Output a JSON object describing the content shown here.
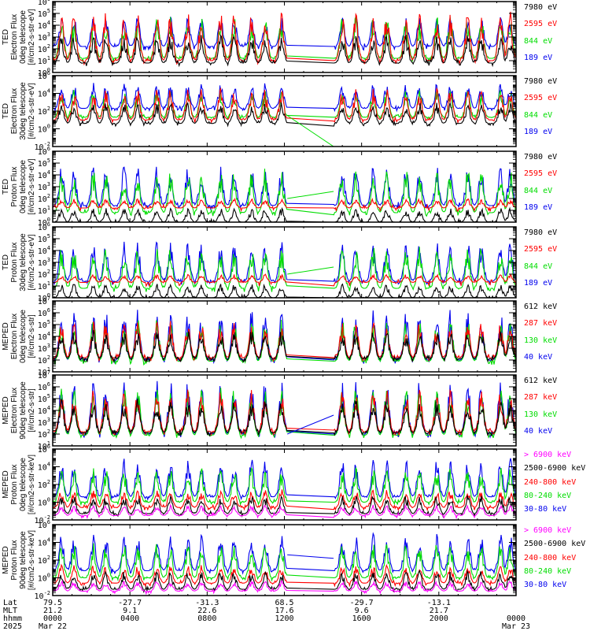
{
  "chart_data": {
    "type": "line",
    "title": "",
    "x_axis": {
      "range_hours": [
        0,
        24
      ],
      "ticks_hours": [
        0,
        4,
        8,
        12,
        16,
        20,
        24
      ],
      "rows": [
        {
          "label": "Lat",
          "values": [
            "79.5",
            "-27.7",
            "-31.3",
            "68.5",
            "-29.7",
            "-13.1",
            ""
          ]
        },
        {
          "label": "MLT",
          "values": [
            "21.2",
            "9.1",
            "22.6",
            "17.6",
            "9.6",
            "21.7",
            ""
          ]
        },
        {
          "label": "hhmm",
          "values": [
            "0000",
            "0400",
            "0800",
            "1200",
            "1600",
            "2000",
            "0000"
          ]
        },
        {
          "label": "2025",
          "values": [
            "Mar 22",
            "",
            "",
            "",
            "",
            "",
            "Mar 23"
          ]
        }
      ],
      "data_gap_hours": [
        12.15,
        14.55
      ]
    },
    "panels": [
      {
        "ylabel": [
          "TED",
          "Electron Flux",
          "0deg telescope",
          "[#/cm2-s-str-eV]"
        ],
        "yscale": "log",
        "ylim_exp": [
          0,
          6
        ],
        "tick_exps": [
          0,
          1,
          2,
          3,
          4,
          5,
          6
        ],
        "series": [
          {
            "name": "7980 eV",
            "color": "#000000",
            "base_exp": 0.8,
            "peak_exp": 3.2
          },
          {
            "name": "2595 eV",
            "color": "#ff0000",
            "base_exp": 1.0,
            "peak_exp": 5.2
          },
          {
            "name": "844 eV",
            "color": "#00dd00",
            "base_exp": 1.2,
            "peak_exp": 4.8
          },
          {
            "name": "189 eV",
            "color": "#0000ee",
            "base_exp": 2.2,
            "peak_exp": 4.8
          }
        ],
        "gap_line": null
      },
      {
        "ylabel": [
          "TED",
          "Electron Flux",
          "30deg telescope",
          "[#/cm2-s-str-eV]"
        ],
        "yscale": "log",
        "ylim_exp": [
          -2,
          6
        ],
        "tick_exps": [
          -2,
          0,
          2,
          4,
          6
        ],
        "series": [
          {
            "name": "7980 eV",
            "color": "#000000",
            "base_exp": 0.6,
            "peak_exp": 3.0
          },
          {
            "name": "2595 eV",
            "color": "#ff0000",
            "base_exp": 1.0,
            "peak_exp": 4.6
          },
          {
            "name": "844 eV",
            "color": "#00dd00",
            "base_exp": 1.3,
            "peak_exp": 4.4
          },
          {
            "name": "189 eV",
            "color": "#0000ee",
            "base_exp": 2.3,
            "peak_exp": 5.2
          }
        ],
        "gap_line": {
          "color": "#00dd00",
          "from_exp": 1.5,
          "to_exp": -2
        }
      },
      {
        "ylabel": [
          "TED",
          "Proton Flux",
          "0deg telescope",
          "[#/cm2-s-str-eV]"
        ],
        "yscale": "log",
        "ylim_exp": [
          0,
          6
        ],
        "tick_exps": [
          0,
          1,
          2,
          3,
          4,
          5,
          6
        ],
        "series": [
          {
            "name": "7980 eV",
            "color": "#000000",
            "base_exp": 0.0,
            "peak_exp": 1.2
          },
          {
            "name": "2595 eV",
            "color": "#ff0000",
            "base_exp": 1.2,
            "peak_exp": 2.0
          },
          {
            "name": "844 eV",
            "color": "#00dd00",
            "base_exp": 0.8,
            "peak_exp": 4.6
          },
          {
            "name": "189 eV",
            "color": "#0000ee",
            "base_exp": 1.4,
            "peak_exp": 4.8
          }
        ],
        "gap_line": {
          "color": "#00dd00",
          "from_exp": 2.0,
          "to_exp": 2.6
        }
      },
      {
        "ylabel": [
          "TED",
          "Proton Flux",
          "30deg telescope",
          "[#/cm2-s-str-eV]"
        ],
        "yscale": "log",
        "ylim_exp": [
          0,
          6
        ],
        "tick_exps": [
          0,
          1,
          2,
          3,
          4,
          5,
          6
        ],
        "series": [
          {
            "name": "7980 eV",
            "color": "#000000",
            "base_exp": 0.0,
            "peak_exp": 1.2
          },
          {
            "name": "2595 eV",
            "color": "#ff0000",
            "base_exp": 1.3,
            "peak_exp": 2.0
          },
          {
            "name": "844 eV",
            "color": "#00dd00",
            "base_exp": 0.8,
            "peak_exp": 4.4
          },
          {
            "name": "189 eV",
            "color": "#0000ee",
            "base_exp": 1.4,
            "peak_exp": 4.8
          }
        ],
        "gap_line": {
          "color": "#00dd00",
          "from_exp": 2.0,
          "to_exp": 2.6
        }
      },
      {
        "ylabel": [
          "MEPED",
          "Electron Flux",
          "0deg telescope",
          "[#/cm2-s-str]"
        ],
        "yscale": "log",
        "ylim_exp": [
          1,
          7
        ],
        "tick_exps": [
          1,
          2,
          3,
          4,
          5,
          6,
          7
        ],
        "series": [
          {
            "name": "612 keV",
            "color": "#000000",
            "base_exp": 2.1,
            "peak_exp": 4.6
          },
          {
            "name": "287 keV",
            "color": "#ff0000",
            "base_exp": 2.2,
            "peak_exp": 5.3
          },
          {
            "name": "130 keV",
            "color": "#00dd00",
            "base_exp": 1.9,
            "peak_exp": 5.5
          },
          {
            "name": "40 keV",
            "color": "#0000ee",
            "base_exp": 2.0,
            "peak_exp": 6.3
          }
        ],
        "gap_line": null
      },
      {
        "ylabel": [
          "MEPED",
          "Electron Flux",
          "90deg telescope",
          "[#/cm2-s-str]"
        ],
        "yscale": "log",
        "ylim_exp": [
          1,
          7
        ],
        "tick_exps": [
          1,
          2,
          3,
          4,
          5,
          6,
          7
        ],
        "series": [
          {
            "name": "612 keV",
            "color": "#000000",
            "base_exp": 2.1,
            "peak_exp": 5.0
          },
          {
            "name": "287 keV",
            "color": "#ff0000",
            "base_exp": 2.2,
            "peak_exp": 5.8
          },
          {
            "name": "130 keV",
            "color": "#00dd00",
            "base_exp": 1.9,
            "peak_exp": 6.0
          },
          {
            "name": "40 keV",
            "color": "#0000ee",
            "base_exp": 2.0,
            "peak_exp": 6.6
          }
        ],
        "gap_line": {
          "color": "#0000ee",
          "from_exp": 2.0,
          "to_exp": 3.6
        }
      },
      {
        "ylabel": [
          "MEPED",
          "Proton Flux",
          "0deg telescope",
          "[#/cm2-s-str-keV]"
        ],
        "yscale": "log",
        "ylim_exp": [
          -2,
          6
        ],
        "tick_exps": [
          -2,
          0,
          2,
          4,
          6
        ],
        "series": [
          {
            "name": "> 6900 keV",
            "color": "#ff00ff",
            "base_exp": -1.5,
            "peak_exp": -0.3
          },
          {
            "name": "2500-6900 keV",
            "color": "#000000",
            "base_exp": -1.3,
            "peak_exp": 0.8
          },
          {
            "name": "240-800 keV",
            "color": "#ff0000",
            "base_exp": -0.6,
            "peak_exp": 1.5
          },
          {
            "name": "80-240 keV",
            "color": "#00dd00",
            "base_exp": 0.0,
            "peak_exp": 4.0
          },
          {
            "name": "30-80 keV",
            "color": "#0000ee",
            "base_exp": 0.6,
            "peak_exp": 5.0
          }
        ],
        "gap_line": null
      },
      {
        "ylabel": [
          "MEPED",
          "Proton Flux",
          "90deg telescope",
          "[#/cm2-s-str-keV]"
        ],
        "yscale": "log",
        "ylim_exp": [
          -2,
          6
        ],
        "tick_exps": [
          -2,
          0,
          2,
          4,
          6
        ],
        "series": [
          {
            "name": "> 6900 keV",
            "color": "#ff00ff",
            "base_exp": -1.5,
            "peak_exp": -0.3
          },
          {
            "name": "2500-6900 keV",
            "color": "#000000",
            "base_exp": -1.3,
            "peak_exp": 0.8
          },
          {
            "name": "240-800 keV",
            "color": "#ff0000",
            "base_exp": -0.6,
            "peak_exp": 1.5
          },
          {
            "name": "80-240 keV",
            "color": "#00dd00",
            "base_exp": 0.0,
            "peak_exp": 4.0
          },
          {
            "name": "30-80 keV",
            "color": "#0000ee",
            "base_exp": 0.8,
            "peak_exp": 5.0
          }
        ],
        "gap_line": {
          "color": "#0000ee",
          "from_exp": 2.6,
          "to_exp": 2.2
        }
      }
    ],
    "pass_centers_hours": [
      0.45,
      1.1,
      2.1,
      2.75,
      3.7,
      4.4,
      5.4,
      6.1,
      7.0,
      7.7,
      8.7,
      9.4,
      10.3,
      11.0,
      11.85,
      15.0,
      15.7,
      16.6,
      17.3,
      18.3,
      19.0,
      19.9,
      20.6,
      21.5,
      22.2,
      23.2,
      23.7
    ]
  }
}
